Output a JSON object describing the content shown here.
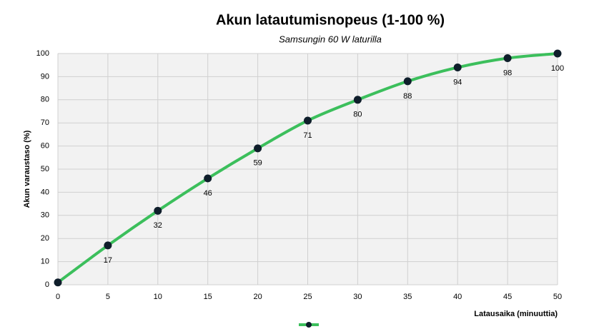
{
  "chart_data": {
    "type": "line",
    "title": "Akun latautumisnopeus (1-100 %)",
    "subtitle": "Samsungin 60 W laturilla",
    "x_label": "Latausaika (minuuttia)",
    "y_label": "Akun varaustaso (%)",
    "x": [
      0,
      5,
      10,
      15,
      20,
      25,
      30,
      35,
      40,
      45,
      50
    ],
    "series": [
      {
        "color": "#3cbf5c",
        "marker_color": "#0f1e2b",
        "values": [
          1,
          17,
          32,
          46,
          59,
          71,
          80,
          88,
          94,
          98,
          100
        ],
        "value_labels": [
          null,
          "17",
          "32",
          "46",
          "59",
          "71",
          "80",
          "88",
          "94",
          "98",
          "100"
        ]
      }
    ],
    "xlim": [
      0,
      50
    ],
    "xticks": [
      0,
      5,
      10,
      15,
      20,
      25,
      30,
      35,
      40,
      45,
      50
    ],
    "ylim": [
      0,
      100
    ],
    "yticks": [
      0,
      10,
      20,
      30,
      40,
      50,
      60,
      70,
      80,
      90,
      100
    ],
    "grid": true,
    "smooth": true,
    "legend": "bottom"
  }
}
